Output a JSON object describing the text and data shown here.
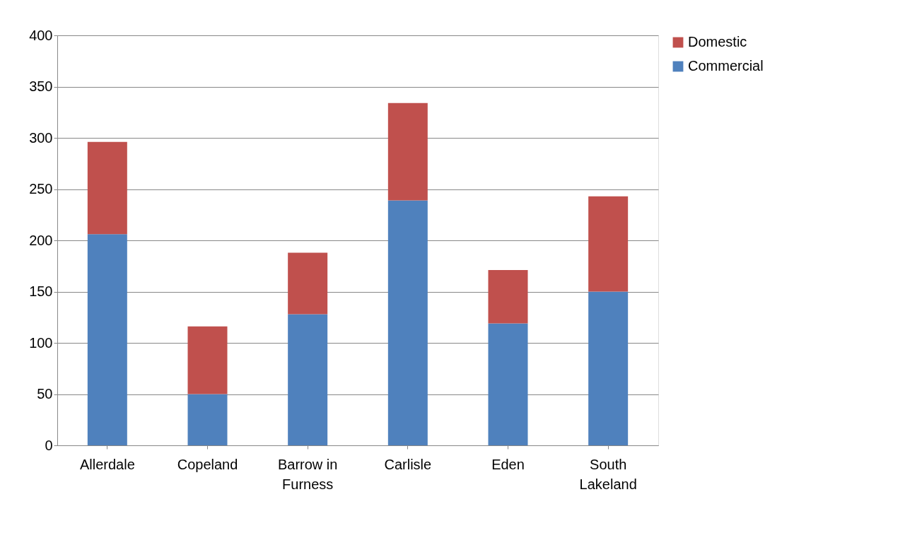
{
  "chart_data": {
    "type": "bar",
    "stacked": true,
    "categories": [
      "Allerdale",
      "Copeland",
      "Barrow in Furness",
      "Carlisle",
      "Eden",
      "South Lakeland"
    ],
    "series": [
      {
        "name": "Commercial",
        "color": "#4f81bd",
        "values": [
          206,
          50,
          128,
          239,
          119,
          150
        ]
      },
      {
        "name": "Domestic",
        "color": "#c0504d",
        "values": [
          90,
          66,
          60,
          95,
          52,
          93
        ]
      }
    ],
    "ylim": [
      0,
      400
    ],
    "yticks": [
      0,
      50,
      100,
      150,
      200,
      250,
      300,
      350,
      400
    ],
    "grid": "y",
    "legend": "right"
  }
}
